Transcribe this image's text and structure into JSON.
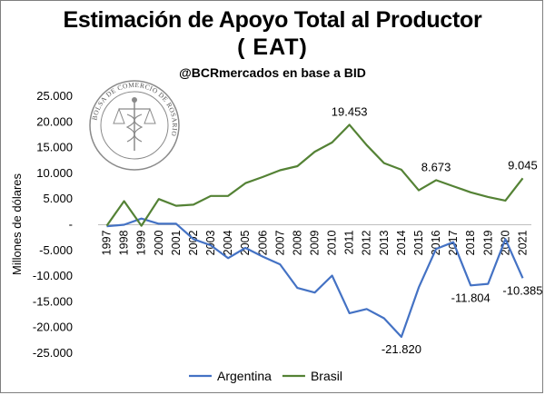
{
  "title_line1": "Estimación de Apoyo Total al Productor",
  "title_line2": "( EAT)",
  "subtitle": "@BCRmercados en base a BID",
  "seal_text": "BOLSA DE COMERCIO DE ROSARIO",
  "colors": {
    "argentina": "#4472c4",
    "brasil": "#548235"
  },
  "chart_data": {
    "type": "line",
    "ylabel": "Millones de dólares",
    "ylim": [
      -25000,
      25000
    ],
    "yticks": [
      25000,
      20000,
      15000,
      10000,
      5000,
      0,
      -5000,
      -10000,
      -15000,
      -20000,
      -25000
    ],
    "ytick_labels": [
      "25.000",
      "20.000",
      "15.000",
      "10.000",
      "5.000",
      "-",
      "-5.000",
      "-10.000",
      "-15.000",
      "-20.000",
      "-25.000"
    ],
    "x": [
      "1997",
      "1998",
      "1999",
      "2000",
      "2001",
      "2002",
      "2003",
      "2004",
      "2005",
      "2006",
      "2007",
      "2008",
      "2009",
      "2010",
      "2011",
      "2012",
      "2013",
      "2014",
      "2015",
      "2016",
      "2017",
      "2018",
      "2019",
      "2020",
      "2021"
    ],
    "series": [
      {
        "name": "Argentina",
        "values": [
          -300,
          0,
          1200,
          200,
          200,
          -2800,
          -4000,
          -6500,
          -4500,
          -6200,
          -7700,
          -12300,
          -13200,
          -9900,
          -17200,
          -16400,
          -18200,
          -21820,
          -12200,
          -4700,
          -3400,
          -11804,
          -11500,
          -2800,
          -10385
        ]
      },
      {
        "name": "Brasil",
        "values": [
          -200,
          4600,
          -200,
          5000,
          3700,
          3900,
          5600,
          5600,
          8100,
          9300,
          10600,
          11400,
          14200,
          16000,
          19453,
          15500,
          12000,
          10700,
          6700,
          8673,
          7500,
          6300,
          5400,
          4700,
          9045
        ]
      }
    ],
    "data_labels": [
      {
        "series": "Brasil",
        "x": "2011",
        "text": "19.453"
      },
      {
        "series": "Brasil",
        "x": "2016",
        "text": "8.673"
      },
      {
        "series": "Brasil",
        "x": "2021",
        "text": "9.045"
      },
      {
        "series": "Argentina",
        "x": "2014",
        "text": "-21.820"
      },
      {
        "series": "Argentina",
        "x": "2018",
        "text": "-11.804"
      },
      {
        "series": "Argentina",
        "x": "2021",
        "text": "-10.385"
      }
    ],
    "legend_position": "bottom",
    "grid": false
  }
}
